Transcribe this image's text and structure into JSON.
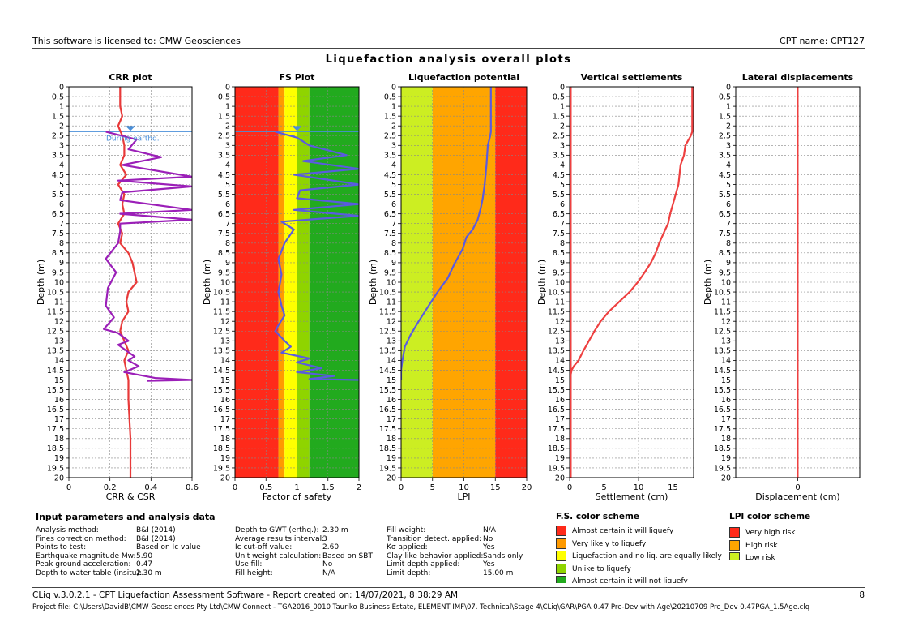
{
  "header": {
    "license": "This software is licensed to: CMW Geosciences",
    "cpt_name": "CPT name: CPT127",
    "main_title": "Liquefaction analysis overall plots"
  },
  "colors": {
    "crr": "#e83a3a",
    "csr": "#9b1fb8",
    "fs": "#5a5be0",
    "lpi": "#5a5be0",
    "settlement": "#ee4040",
    "displacement": "#ee4040",
    "gwt": "#4a8fd9"
  },
  "chart_data": [
    {
      "type": "line",
      "title": "CRR plot",
      "xlabel": "CRR & CSR",
      "ylabel": "Depth (m)",
      "xlim": [
        0,
        0.6
      ],
      "ylim": [
        0,
        20
      ],
      "y_reversed": true,
      "x_ticks": [
        "0",
        "0.2",
        "0.4",
        "0.6"
      ],
      "grid": true,
      "annotation": "During earthq.",
      "gwt_depth": 2.3,
      "series": [
        {
          "role": "CRR",
          "x": [
            0.25,
            0.25,
            0.26,
            0.24,
            0.26,
            0.27,
            0.27,
            0.25,
            0.28,
            0.24,
            0.27,
            0.26,
            0.27,
            0.24,
            0.26,
            0.25,
            0.29,
            0.31,
            0.33,
            0.29,
            0.28,
            0.29,
            0.26,
            0.25,
            0.27,
            0.29,
            0.27,
            0.28,
            0.29,
            0.29,
            0.3,
            0.3
          ],
          "y": [
            0,
            1,
            1.5,
            2,
            2.5,
            3,
            3.5,
            4,
            4.5,
            5,
            5.5,
            6,
            6.5,
            7,
            7.5,
            8,
            8.5,
            9,
            10,
            10.5,
            11,
            11.5,
            12,
            12.5,
            13,
            13.5,
            14,
            14.5,
            15,
            16,
            18,
            20
          ]
        },
        {
          "role": "CSR",
          "x": [
            0.18,
            0.33,
            0.29,
            0.45,
            0.26,
            0.6,
            0.24,
            0.6,
            0.26,
            0.25,
            0.6,
            0.25,
            0.6,
            0.25,
            0.25,
            0.24,
            0.18,
            0.23,
            0.19,
            0.18,
            0.22,
            0.17,
            0.24,
            0.29,
            0.24,
            0.28,
            0.32,
            0.29,
            0.34,
            0.27,
            0.42,
            0.6,
            0.38
          ],
          "y": [
            2.3,
            2.7,
            3.2,
            3.6,
            4.0,
            4.6,
            4.8,
            5.1,
            5.4,
            5.8,
            6.3,
            6.5,
            6.8,
            7.0,
            7.4,
            8.0,
            8.8,
            9.5,
            10.3,
            11.2,
            11.8,
            12.4,
            12.6,
            13.0,
            13.2,
            13.5,
            13.8,
            14.0,
            14.3,
            14.6,
            14.9,
            15.0,
            15.05
          ]
        }
      ]
    },
    {
      "type": "line",
      "title": "FS Plot",
      "xlabel": "Factor of safety",
      "ylabel": "Depth (m)",
      "xlim": [
        0,
        2
      ],
      "ylim": [
        0,
        20
      ],
      "y_reversed": true,
      "x_ticks": [
        "0",
        "0.5",
        "1",
        "1.5",
        "2"
      ],
      "grid": true,
      "gwt_depth": 2.3,
      "background_bands": [
        {
          "from": 0,
          "to": 0.7,
          "color": "#ff2a1a"
        },
        {
          "from": 0.7,
          "to": 0.8,
          "color": "#ff9a00"
        },
        {
          "from": 0.8,
          "to": 1.0,
          "color": "#ffff00"
        },
        {
          "from": 1.0,
          "to": 1.2,
          "color": "#8fd400"
        },
        {
          "from": 1.2,
          "to": 2.0,
          "color": "#22aa1e"
        }
      ],
      "series": [
        {
          "role": "FS",
          "x": [
            0.65,
            1.0,
            1.2,
            1.8,
            1.1,
            2.0,
            0.95,
            2.0,
            1.05,
            1.0,
            2.0,
            0.95,
            2.0,
            0.75,
            0.95,
            0.8,
            0.7,
            0.75,
            0.7,
            0.75,
            0.8,
            0.7,
            0.65,
            0.8,
            0.9,
            0.75,
            1.2,
            1.0,
            1.4,
            1.0,
            1.6,
            1.2,
            2.0
          ],
          "y": [
            2.3,
            2.6,
            3.0,
            3.5,
            3.8,
            4.2,
            4.5,
            5.0,
            5.3,
            5.7,
            6.0,
            6.3,
            6.6,
            6.9,
            7.3,
            8.0,
            8.8,
            9.6,
            10.5,
            11.2,
            11.7,
            12.2,
            12.5,
            13.0,
            13.3,
            13.6,
            13.9,
            14.1,
            14.4,
            14.6,
            14.8,
            14.95,
            15.0
          ]
        }
      ]
    },
    {
      "type": "line",
      "title": "Liquefaction potential",
      "xlabel": "LPI",
      "ylabel": "Depth (m)",
      "xlim": [
        0,
        20
      ],
      "ylim": [
        0,
        20
      ],
      "y_reversed": true,
      "x_ticks": [
        "0",
        "5",
        "10",
        "15",
        "20"
      ],
      "grid": true,
      "background_bands": [
        {
          "from": 0,
          "to": 5,
          "color": "#ccee22"
        },
        {
          "from": 5,
          "to": 15,
          "color": "#ffa500"
        },
        {
          "from": 15,
          "to": 20,
          "color": "#ff2a1a"
        }
      ],
      "series": [
        {
          "role": "LPI",
          "x": [
            14.3,
            14.3,
            14.2,
            13.8,
            13.6,
            13.3,
            13.0,
            12.7,
            12.2,
            11.4,
            10.4,
            9.8,
            8.6,
            7.4,
            5.8,
            4.4,
            2.8,
            1.5,
            0.6,
            0.2,
            0,
            0
          ],
          "y": [
            0,
            2.3,
            2.5,
            3.0,
            4.0,
            5.0,
            5.7,
            6.2,
            6.8,
            7.3,
            7.7,
            8.3,
            9.0,
            9.8,
            10.5,
            11.2,
            12.0,
            12.7,
            13.3,
            14.0,
            14.5,
            15.0
          ]
        }
      ]
    },
    {
      "type": "line",
      "title": "Vertical settlements",
      "xlabel": "Settlement (cm)",
      "ylabel": "Depth (m)",
      "xlim": [
        0,
        18
      ],
      "ylim": [
        0,
        20
      ],
      "y_reversed": true,
      "x_ticks": [
        "0",
        "5",
        "10",
        "15"
      ],
      "grid": true,
      "series": [
        {
          "role": "settlement",
          "x": [
            17.8,
            17.8,
            17.6,
            16.8,
            16.6,
            16.1,
            15.8,
            15.4,
            15.0,
            14.6,
            14.3,
            13.9,
            13.5,
            13.0,
            12.5,
            11.8,
            10.9,
            9.9,
            8.7,
            7.2,
            5.7,
            4.5,
            3.6,
            2.8,
            2.0,
            1.3,
            0.6,
            0.3,
            0,
            0
          ],
          "y": [
            0,
            2.3,
            2.5,
            3.0,
            3.5,
            4.0,
            5.0,
            5.5,
            6.0,
            6.5,
            7.0,
            7.3,
            7.6,
            8.0,
            8.5,
            9.0,
            9.5,
            10.0,
            10.5,
            11.0,
            11.5,
            12.0,
            12.5,
            13.0,
            13.5,
            14.0,
            14.3,
            14.5,
            15.0,
            20
          ]
        },
        {
          "role": "baseline",
          "x": [
            0,
            0
          ],
          "y": [
            0,
            20
          ]
        }
      ]
    },
    {
      "type": "line",
      "title": "Lateral displacements",
      "xlabel": "Displacement (cm)",
      "ylabel": "Depth (m)",
      "ylim": [
        0,
        20
      ],
      "y_reversed": true,
      "x_ticks": [
        "0"
      ],
      "grid": true,
      "series": [
        {
          "role": "displacement",
          "x": [
            0,
            0
          ],
          "y": [
            0,
            20
          ]
        }
      ]
    }
  ],
  "params": {
    "title": "Input parameters and analysis data",
    "col1": [
      {
        "label": "Analysis method:",
        "value": "B&I (2014)"
      },
      {
        "label": "Fines correction method:",
        "value": "B&I (2014)"
      },
      {
        "label": "Points to test:",
        "value": "Based on Ic value"
      },
      {
        "label": "Earthquake magnitude Mw:",
        "value": "5.90"
      },
      {
        "label": "Peak ground acceleration:",
        "value": "0.47"
      },
      {
        "label": "Depth to water table (insitu):",
        "value": "2.30 m"
      }
    ],
    "col2": [
      {
        "label": "Depth to GWT (erthq.):",
        "value": "2.30 m"
      },
      {
        "label": "Average results interval:",
        "value": "3"
      },
      {
        "label": "Ic cut-off value:",
        "value": "2.60"
      },
      {
        "label": "Unit weight calculation:",
        "value": "Based on SBT"
      },
      {
        "label": "Use fill:",
        "value": "No"
      },
      {
        "label": "Fill height:",
        "value": "N/A"
      }
    ],
    "col3": [
      {
        "label": "Fill weight:",
        "value": "N/A"
      },
      {
        "label": "Transition detect. applied:",
        "value": "No"
      },
      {
        "label": "Kσ applied:",
        "value": "Yes"
      },
      {
        "label": "Clay like behavior applied:",
        "value": "Sands only"
      },
      {
        "label": "Limit depth applied:",
        "value": "Yes"
      },
      {
        "label": "Limit depth:",
        "value": "15.00 m"
      }
    ]
  },
  "fs_scheme": {
    "title": "F.S. color scheme",
    "items": [
      {
        "label": "Almost certain it will liquefy",
        "color": "#ff2a1a"
      },
      {
        "label": "Very likely to liquefy",
        "color": "#ff9a00"
      },
      {
        "label": "Liquefaction and no liq. are equally likely",
        "color": "#ffff00"
      },
      {
        "label": "Unlike to liquefy",
        "color": "#8fd400"
      },
      {
        "label": "Almost certain it will not liquefy",
        "color": "#22aa1e"
      }
    ]
  },
  "lpi_scheme": {
    "title": "LPI color scheme",
    "items": [
      {
        "label": "Very high risk",
        "color": "#ff2a1a"
      },
      {
        "label": "High risk",
        "color": "#ffa500"
      },
      {
        "label": "Low risk",
        "color": "#ccee22"
      }
    ]
  },
  "footer": {
    "line1": "CLiq v.3.0.2.1 - CPT Liquefaction Assessment Software - Report created on: 14/07/2021, 8:38:29 AM",
    "page": "8",
    "line2": "Project file: C:\\Users\\DavidB\\CMW Geosciences Pty Ltd\\CMW Connect - TGA2016_0010 Tauriko Business Estate, ELEMENT IMF\\07. Technical\\Stage 4\\CLiq\\GAR\\PGA 0.47 Pre-Dev with Age\\20210709 Pre_Dev 0.47PGA_1.5Age.clq"
  }
}
